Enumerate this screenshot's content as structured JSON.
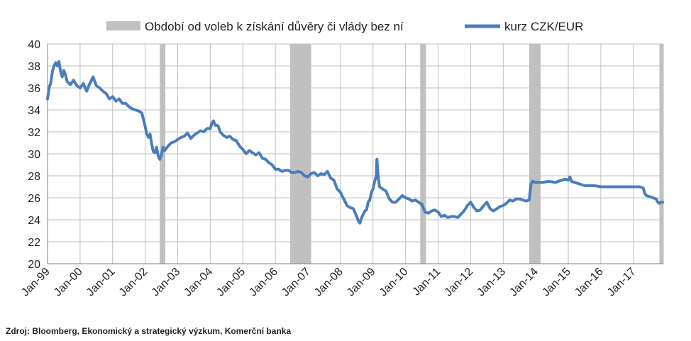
{
  "chart_data": {
    "type": "line",
    "legend": {
      "placement": "top",
      "entries": [
        {
          "label": "Období od voleb k získání důvěry či vlády bez ní",
          "kind": "band",
          "color": "#c0c0c0"
        },
        {
          "label": "kurz CZK/EUR",
          "kind": "line",
          "color": "#4a7ebb"
        }
      ]
    },
    "ylim": [
      20,
      40
    ],
    "yticks": [
      "20",
      "22",
      "24",
      "26",
      "28",
      "30",
      "32",
      "34",
      "36",
      "38",
      "40"
    ],
    "xlim": [
      1999.0,
      2017.92
    ],
    "xticks": [
      {
        "label": "Jan-99",
        "x": 1999
      },
      {
        "label": "Jan-00",
        "x": 2000
      },
      {
        "label": "Jan-01",
        "x": 2001
      },
      {
        "label": "Jan-02",
        "x": 2002
      },
      {
        "label": "Jan-03",
        "x": 2003
      },
      {
        "label": "Jan-04",
        "x": 2004
      },
      {
        "label": "Jan-05",
        "x": 2005
      },
      {
        "label": "Jan-06",
        "x": 2006
      },
      {
        "label": "Jan-07",
        "x": 2007
      },
      {
        "label": "Jan-08",
        "x": 2008
      },
      {
        "label": "Jan-09",
        "x": 2009
      },
      {
        "label": "Jan-10",
        "x": 2010
      },
      {
        "label": "Jan-11",
        "x": 2011
      },
      {
        "label": "Jan-12",
        "x": 2012
      },
      {
        "label": "Jan-13",
        "x": 2013
      },
      {
        "label": "Jan-14",
        "x": 2014
      },
      {
        "label": "Jan-15",
        "x": 2015
      },
      {
        "label": "Jan-16",
        "x": 2016
      },
      {
        "label": "Jan-17",
        "x": 2017
      }
    ],
    "grid": {
      "horizontal": true,
      "vertical": true
    },
    "bands": [
      {
        "start": 2002.45,
        "end": 2002.62
      },
      {
        "start": 2006.45,
        "end": 2007.1
      },
      {
        "start": 2010.45,
        "end": 2010.63
      },
      {
        "start": 2013.8,
        "end": 2014.15
      },
      {
        "start": 2017.8,
        "end": 2017.92
      }
    ],
    "series": [
      {
        "name": "kurz CZK/EUR",
        "color": "#4a7ebb",
        "points": [
          [
            1999.0,
            35.0
          ],
          [
            1999.05,
            36.0
          ],
          [
            1999.1,
            36.5
          ],
          [
            1999.15,
            37.5
          ],
          [
            1999.2,
            38.0
          ],
          [
            1999.25,
            38.3
          ],
          [
            1999.3,
            38.0
          ],
          [
            1999.35,
            38.4
          ],
          [
            1999.4,
            37.5
          ],
          [
            1999.45,
            37.0
          ],
          [
            1999.5,
            37.6
          ],
          [
            1999.55,
            37.2
          ],
          [
            1999.6,
            36.6
          ],
          [
            1999.7,
            36.3
          ],
          [
            1999.8,
            36.7
          ],
          [
            1999.9,
            36.2
          ],
          [
            2000.0,
            36.0
          ],
          [
            2000.1,
            36.4
          ],
          [
            2000.2,
            35.7
          ],
          [
            2000.3,
            36.4
          ],
          [
            2000.4,
            37.0
          ],
          [
            2000.5,
            36.2
          ],
          [
            2000.6,
            36.0
          ],
          [
            2000.7,
            35.7
          ],
          [
            2000.8,
            35.5
          ],
          [
            2000.9,
            35.0
          ],
          [
            2001.0,
            35.2
          ],
          [
            2001.1,
            34.8
          ],
          [
            2001.2,
            35.0
          ],
          [
            2001.3,
            34.6
          ],
          [
            2001.4,
            34.6
          ],
          [
            2001.5,
            34.3
          ],
          [
            2001.6,
            34.1
          ],
          [
            2001.7,
            34.0
          ],
          [
            2001.8,
            33.9
          ],
          [
            2001.9,
            33.7
          ],
          [
            2002.0,
            32.5
          ],
          [
            2002.05,
            31.8
          ],
          [
            2002.1,
            31.5
          ],
          [
            2002.15,
            31.8
          ],
          [
            2002.2,
            30.9
          ],
          [
            2002.25,
            30.2
          ],
          [
            2002.3,
            30.1
          ],
          [
            2002.35,
            30.6
          ],
          [
            2002.4,
            29.8
          ],
          [
            2002.45,
            29.5
          ],
          [
            2002.5,
            29.9
          ],
          [
            2002.55,
            30.6
          ],
          [
            2002.6,
            30.3
          ],
          [
            2002.7,
            30.7
          ],
          [
            2002.8,
            31.0
          ],
          [
            2002.9,
            31.1
          ],
          [
            2003.0,
            31.3
          ],
          [
            2003.1,
            31.5
          ],
          [
            2003.2,
            31.6
          ],
          [
            2003.3,
            31.9
          ],
          [
            2003.4,
            31.4
          ],
          [
            2003.5,
            31.7
          ],
          [
            2003.6,
            31.9
          ],
          [
            2003.7,
            32.1
          ],
          [
            2003.8,
            32.0
          ],
          [
            2003.9,
            32.3
          ],
          [
            2004.0,
            32.3
          ],
          [
            2004.05,
            32.8
          ],
          [
            2004.1,
            33.0
          ],
          [
            2004.15,
            32.6
          ],
          [
            2004.2,
            32.6
          ],
          [
            2004.25,
            32.5
          ],
          [
            2004.3,
            32.0
          ],
          [
            2004.4,
            31.7
          ],
          [
            2004.5,
            31.5
          ],
          [
            2004.6,
            31.6
          ],
          [
            2004.7,
            31.3
          ],
          [
            2004.8,
            31.2
          ],
          [
            2004.9,
            30.7
          ],
          [
            2005.0,
            30.4
          ],
          [
            2005.1,
            30.0
          ],
          [
            2005.2,
            30.3
          ],
          [
            2005.3,
            30.1
          ],
          [
            2005.4,
            29.9
          ],
          [
            2005.5,
            30.1
          ],
          [
            2005.6,
            29.6
          ],
          [
            2005.7,
            29.5
          ],
          [
            2005.8,
            29.2
          ],
          [
            2005.9,
            29.0
          ],
          [
            2006.0,
            28.6
          ],
          [
            2006.1,
            28.6
          ],
          [
            2006.2,
            28.4
          ],
          [
            2006.3,
            28.5
          ],
          [
            2006.4,
            28.5
          ],
          [
            2006.5,
            28.3
          ],
          [
            2006.6,
            28.3
          ],
          [
            2006.7,
            28.4
          ],
          [
            2006.8,
            28.3
          ],
          [
            2006.9,
            28.0
          ],
          [
            2007.0,
            27.9
          ],
          [
            2007.1,
            28.2
          ],
          [
            2007.2,
            28.3
          ],
          [
            2007.3,
            28.0
          ],
          [
            2007.4,
            28.2
          ],
          [
            2007.5,
            28.1
          ],
          [
            2007.6,
            28.4
          ],
          [
            2007.7,
            27.8
          ],
          [
            2007.8,
            27.6
          ],
          [
            2007.9,
            26.8
          ],
          [
            2008.0,
            26.5
          ],
          [
            2008.1,
            25.9
          ],
          [
            2008.2,
            25.3
          ],
          [
            2008.3,
            25.1
          ],
          [
            2008.4,
            25.0
          ],
          [
            2008.5,
            24.3
          ],
          [
            2008.55,
            23.9
          ],
          [
            2008.6,
            23.7
          ],
          [
            2008.65,
            24.2
          ],
          [
            2008.7,
            24.5
          ],
          [
            2008.75,
            24.8
          ],
          [
            2008.8,
            24.9
          ],
          [
            2008.85,
            25.6
          ],
          [
            2008.9,
            25.8
          ],
          [
            2008.95,
            26.5
          ],
          [
            2009.0,
            26.8
          ],
          [
            2009.05,
            27.5
          ],
          [
            2009.1,
            28.0
          ],
          [
            2009.12,
            29.5
          ],
          [
            2009.15,
            28.2
          ],
          [
            2009.2,
            27.0
          ],
          [
            2009.3,
            26.8
          ],
          [
            2009.4,
            26.6
          ],
          [
            2009.5,
            25.9
          ],
          [
            2009.6,
            25.6
          ],
          [
            2009.7,
            25.6
          ],
          [
            2009.8,
            25.9
          ],
          [
            2009.9,
            26.2
          ],
          [
            2010.0,
            26.0
          ],
          [
            2010.1,
            25.9
          ],
          [
            2010.2,
            25.7
          ],
          [
            2010.3,
            25.8
          ],
          [
            2010.4,
            25.6
          ],
          [
            2010.5,
            25.4
          ],
          [
            2010.6,
            24.7
          ],
          [
            2010.7,
            24.6
          ],
          [
            2010.8,
            24.8
          ],
          [
            2010.9,
            24.9
          ],
          [
            2011.0,
            24.7
          ],
          [
            2011.1,
            24.3
          ],
          [
            2011.2,
            24.4
          ],
          [
            2011.3,
            24.2
          ],
          [
            2011.4,
            24.3
          ],
          [
            2011.5,
            24.3
          ],
          [
            2011.6,
            24.2
          ],
          [
            2011.7,
            24.5
          ],
          [
            2011.8,
            24.8
          ],
          [
            2011.9,
            25.3
          ],
          [
            2012.0,
            25.6
          ],
          [
            2012.1,
            25.1
          ],
          [
            2012.2,
            24.8
          ],
          [
            2012.3,
            24.9
          ],
          [
            2012.4,
            25.3
          ],
          [
            2012.5,
            25.6
          ],
          [
            2012.6,
            25.0
          ],
          [
            2012.7,
            24.8
          ],
          [
            2012.8,
            25.0
          ],
          [
            2012.9,
            25.2
          ],
          [
            2013.0,
            25.3
          ],
          [
            2013.1,
            25.5
          ],
          [
            2013.2,
            25.8
          ],
          [
            2013.3,
            25.7
          ],
          [
            2013.4,
            25.9
          ],
          [
            2013.5,
            25.9
          ],
          [
            2013.6,
            25.8
          ],
          [
            2013.7,
            25.7
          ],
          [
            2013.8,
            25.8
          ],
          [
            2013.85,
            27.2
          ],
          [
            2013.9,
            27.5
          ],
          [
            2014.0,
            27.4
          ],
          [
            2014.2,
            27.4
          ],
          [
            2014.4,
            27.5
          ],
          [
            2014.6,
            27.4
          ],
          [
            2014.8,
            27.6
          ],
          [
            2014.9,
            27.7
          ],
          [
            2015.0,
            27.6
          ],
          [
            2015.05,
            27.9
          ],
          [
            2015.1,
            27.5
          ],
          [
            2015.2,
            27.4
          ],
          [
            2015.3,
            27.3
          ],
          [
            2015.4,
            27.2
          ],
          [
            2015.5,
            27.1
          ],
          [
            2015.6,
            27.1
          ],
          [
            2015.7,
            27.1
          ],
          [
            2015.8,
            27.1
          ],
          [
            2016.0,
            27.0
          ],
          [
            2016.2,
            27.0
          ],
          [
            2016.4,
            27.0
          ],
          [
            2016.6,
            27.0
          ],
          [
            2016.8,
            27.0
          ],
          [
            2017.0,
            27.0
          ],
          [
            2017.2,
            27.0
          ],
          [
            2017.3,
            26.9
          ],
          [
            2017.35,
            26.4
          ],
          [
            2017.4,
            26.2
          ],
          [
            2017.5,
            26.1
          ],
          [
            2017.6,
            26.0
          ],
          [
            2017.7,
            25.9
          ],
          [
            2017.75,
            25.6
          ],
          [
            2017.8,
            25.5
          ],
          [
            2017.85,
            25.6
          ],
          [
            2017.9,
            25.6
          ]
        ]
      }
    ]
  },
  "footer": {
    "source": "Zdroj: Bloomberg, Ekonomický a strategický výzkum, Komerční banka"
  }
}
